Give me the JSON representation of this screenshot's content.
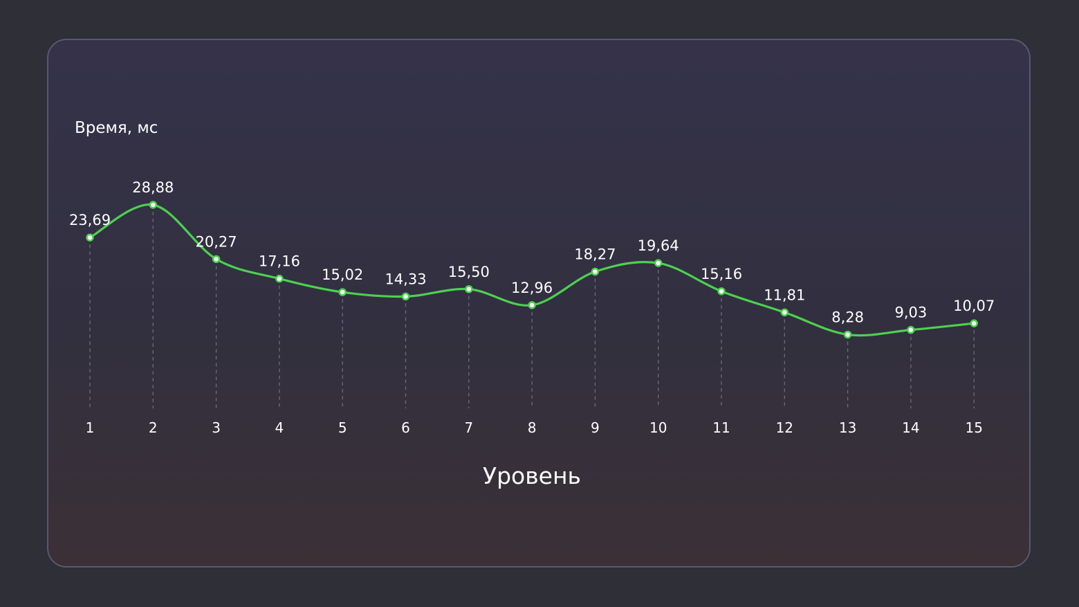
{
  "chart_data": {
    "type": "line",
    "title": "",
    "ylabel": "Время, мс",
    "xlabel": "Уровень",
    "x": [
      1,
      2,
      3,
      4,
      5,
      6,
      7,
      8,
      9,
      10,
      11,
      12,
      13,
      14,
      15
    ],
    "x_tick_labels": [
      "1",
      "2",
      "3",
      "4",
      "5",
      "6",
      "7",
      "8",
      "9",
      "10",
      "11",
      "12",
      "13",
      "14",
      "15"
    ],
    "values": [
      23.69,
      28.88,
      20.27,
      17.16,
      15.02,
      14.33,
      15.5,
      12.96,
      18.27,
      19.64,
      15.16,
      11.81,
      8.28,
      9.03,
      10.07
    ],
    "data_labels": [
      "23,69",
      "28,88",
      "20,27",
      "17,16",
      "15,02",
      "14,33",
      "15,50",
      "12,96",
      "18,27",
      "19,64",
      "15,16",
      "11,81",
      "8,28",
      "9,03",
      "10,07"
    ],
    "line_color": "#4cd14f",
    "grid": false,
    "vertical_guides": true,
    "legend": "none"
  }
}
